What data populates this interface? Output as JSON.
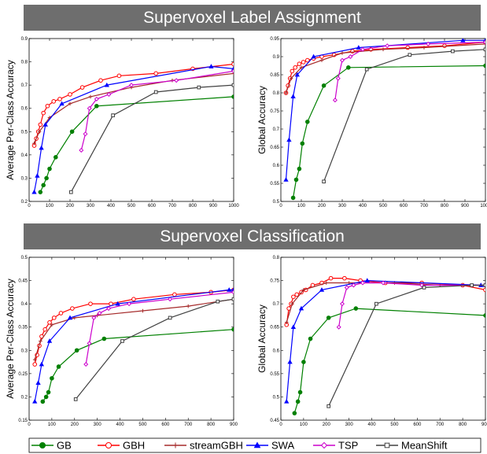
{
  "banners": {
    "top": "Supervoxel Label Assignment",
    "bottom": "Supervoxel Classification"
  },
  "legend": {
    "placement": "bottom",
    "items": [
      {
        "name": "GB",
        "color": "#008000",
        "marker": "circle-filled"
      },
      {
        "name": "GBH",
        "color": "#ff0000",
        "marker": "circle-open"
      },
      {
        "name": "streamGBH",
        "color": "#a52a2a",
        "marker": "plus"
      },
      {
        "name": "SWA",
        "color": "#0000ff",
        "marker": "triangle-filled"
      },
      {
        "name": "TSP",
        "color": "#cc00cc",
        "marker": "diamond-open"
      },
      {
        "name": "MeanShift",
        "color": "#404040",
        "marker": "square-open"
      }
    ]
  },
  "chart_data": [
    {
      "type": "line",
      "ylabel": "Average Per-Class Accuracy",
      "xlim": [
        0,
        1000
      ],
      "ylim": [
        0.2,
        0.9
      ],
      "xticks": [
        0,
        100,
        200,
        300,
        400,
        500,
        600,
        700,
        800,
        900,
        1000
      ],
      "yticks": [
        0.2,
        0.3,
        0.4,
        0.5,
        0.6,
        0.7,
        0.8,
        0.9
      ],
      "ytick_labels": [
        "0.2",
        "0.3",
        "0.4",
        "0.5",
        "0.6",
        "0.7",
        "0.8",
        "0.9"
      ],
      "grid": false,
      "series": [
        {
          "name": "GB",
          "x": [
            55,
            70,
            85,
            100,
            130,
            210,
            330,
            1000
          ],
          "y": [
            0.24,
            0.27,
            0.3,
            0.34,
            0.39,
            0.5,
            0.61,
            0.65
          ]
        },
        {
          "name": "GBH",
          "x": [
            25,
            35,
            45,
            55,
            70,
            90,
            120,
            150,
            200,
            260,
            350,
            440,
            620,
            800,
            1000
          ],
          "y": [
            0.44,
            0.47,
            0.5,
            0.53,
            0.58,
            0.61,
            0.63,
            0.64,
            0.66,
            0.69,
            0.72,
            0.74,
            0.75,
            0.77,
            0.79
          ]
        },
        {
          "name": "streamGBH",
          "x": [
            25,
            50,
            100,
            200,
            300,
            500,
            700,
            1000
          ],
          "y": [
            0.45,
            0.5,
            0.56,
            0.62,
            0.65,
            0.69,
            0.72,
            0.75
          ]
        },
        {
          "name": "SWA",
          "x": [
            25,
            40,
            60,
            80,
            160,
            380,
            890,
            1000
          ],
          "y": [
            0.24,
            0.31,
            0.43,
            0.53,
            0.62,
            0.7,
            0.78,
            0.77
          ]
        },
        {
          "name": "TSP",
          "x": [
            255,
            275,
            295,
            330,
            390,
            500,
            720,
            1000
          ],
          "y": [
            0.42,
            0.49,
            0.6,
            0.64,
            0.66,
            0.7,
            0.72,
            0.76
          ]
        },
        {
          "name": "MeanShift",
          "x": [
            205,
            410,
            620,
            830,
            1000
          ],
          "y": [
            0.24,
            0.57,
            0.67,
            0.69,
            0.7
          ]
        }
      ]
    },
    {
      "type": "line",
      "ylabel": "Global Accuracy",
      "xlim": [
        0,
        1000
      ],
      "ylim": [
        0.5,
        0.95
      ],
      "xticks": [
        0,
        100,
        200,
        300,
        400,
        500,
        600,
        700,
        800,
        900,
        1000
      ],
      "yticks": [
        0.5,
        0.55,
        0.6,
        0.65,
        0.7,
        0.75,
        0.8,
        0.85,
        0.9,
        0.95
      ],
      "ytick_labels": [
        "0.5",
        "0.55",
        "0.6",
        "0.65",
        "0.7",
        "0.75",
        "0.8",
        "0.85",
        "0.9",
        "0.95"
      ],
      "grid": false,
      "series": [
        {
          "name": "GB",
          "x": [
            60,
            75,
            90,
            105,
            130,
            210,
            330,
            1000
          ],
          "y": [
            0.51,
            0.56,
            0.59,
            0.66,
            0.72,
            0.82,
            0.87,
            0.875
          ]
        },
        {
          "name": "GBH",
          "x": [
            25,
            35,
            45,
            55,
            70,
            90,
            110,
            130,
            160,
            200,
            260,
            350,
            440,
            620,
            800,
            1000
          ],
          "y": [
            0.8,
            0.82,
            0.84,
            0.86,
            0.87,
            0.88,
            0.885,
            0.89,
            0.895,
            0.9,
            0.905,
            0.915,
            0.92,
            0.925,
            0.93,
            0.94
          ]
        },
        {
          "name": "streamGBH",
          "x": [
            25,
            50,
            100,
            200,
            300,
            500,
            700,
            1000
          ],
          "y": [
            0.8,
            0.84,
            0.87,
            0.89,
            0.91,
            0.92,
            0.925,
            0.935
          ]
        },
        {
          "name": "SWA",
          "x": [
            25,
            40,
            60,
            80,
            160,
            380,
            890,
            1000
          ],
          "y": [
            0.56,
            0.67,
            0.79,
            0.85,
            0.9,
            0.925,
            0.945,
            0.945
          ]
        },
        {
          "name": "TSP",
          "x": [
            265,
            280,
            300,
            340,
            400,
            520,
            720,
            1000
          ],
          "y": [
            0.78,
            0.84,
            0.89,
            0.9,
            0.92,
            0.93,
            0.935,
            0.94
          ]
        },
        {
          "name": "MeanShift",
          "x": [
            210,
            420,
            630,
            840,
            1000
          ],
          "y": [
            0.555,
            0.865,
            0.905,
            0.915,
            0.92
          ]
        }
      ]
    },
    {
      "type": "line",
      "ylabel": "Average Per-Class Accuracy",
      "xlim": [
        0,
        900
      ],
      "ylim": [
        0.15,
        0.5
      ],
      "xticks": [
        0,
        100,
        200,
        300,
        400,
        500,
        600,
        700,
        800,
        900
      ],
      "yticks": [
        0.15,
        0.2,
        0.25,
        0.3,
        0.35,
        0.4,
        0.45,
        0.5
      ],
      "ytick_labels": [
        "0.15",
        "0.2",
        "0.25",
        "0.3",
        "0.35",
        "0.4",
        "0.45",
        "0.5"
      ],
      "grid": false,
      "series": [
        {
          "name": "GB",
          "x": [
            60,
            75,
            85,
            100,
            130,
            210,
            330,
            900
          ],
          "y": [
            0.19,
            0.2,
            0.21,
            0.24,
            0.265,
            0.3,
            0.325,
            0.345
          ]
        },
        {
          "name": "GBH",
          "x": [
            25,
            35,
            45,
            55,
            70,
            90,
            110,
            140,
            190,
            270,
            360,
            460,
            640,
            800,
            900
          ],
          "y": [
            0.27,
            0.29,
            0.31,
            0.33,
            0.345,
            0.36,
            0.37,
            0.38,
            0.39,
            0.4,
            0.4,
            0.41,
            0.42,
            0.425,
            0.43
          ]
        },
        {
          "name": "streamGBH",
          "x": [
            25,
            50,
            100,
            200,
            300,
            500,
            700,
            900
          ],
          "y": [
            0.28,
            0.32,
            0.355,
            0.37,
            0.375,
            0.385,
            0.395,
            0.41
          ]
        },
        {
          "name": "SWA",
          "x": [
            25,
            40,
            55,
            90,
            180,
            390,
            880,
            900
          ],
          "y": [
            0.19,
            0.23,
            0.27,
            0.32,
            0.37,
            0.4,
            0.43,
            0.43
          ]
        },
        {
          "name": "TSP",
          "x": [
            250,
            265,
            285,
            310,
            350,
            440,
            620,
            900
          ],
          "y": [
            0.27,
            0.315,
            0.37,
            0.38,
            0.39,
            0.4,
            0.41,
            0.425
          ]
        },
        {
          "name": "MeanShift",
          "x": [
            205,
            410,
            620,
            830,
            900
          ],
          "y": [
            0.195,
            0.32,
            0.37,
            0.405,
            0.41
          ]
        }
      ]
    },
    {
      "type": "line",
      "ylabel": "Global Accuracy",
      "xlim": [
        0,
        900
      ],
      "ylim": [
        0.45,
        0.8
      ],
      "xticks": [
        0,
        100,
        200,
        300,
        400,
        500,
        600,
        700,
        800,
        900
      ],
      "yticks": [
        0.45,
        0.5,
        0.55,
        0.6,
        0.65,
        0.7,
        0.75,
        0.8
      ],
      "ytick_labels": [
        "0.45",
        "0.5",
        "0.55",
        "0.6",
        "0.65",
        "0.7",
        "0.75",
        "0.8"
      ],
      "grid": false,
      "series": [
        {
          "name": "GB",
          "x": [
            60,
            75,
            85,
            100,
            130,
            210,
            330,
            900
          ],
          "y": [
            0.465,
            0.49,
            0.51,
            0.575,
            0.625,
            0.67,
            0.69,
            0.675
          ]
        },
        {
          "name": "GBH",
          "x": [
            25,
            35,
            45,
            55,
            70,
            90,
            110,
            140,
            180,
            220,
            280,
            350,
            460,
            620,
            800,
            900
          ],
          "y": [
            0.655,
            0.69,
            0.7,
            0.715,
            0.72,
            0.725,
            0.73,
            0.74,
            0.745,
            0.755,
            0.755,
            0.75,
            0.745,
            0.745,
            0.74,
            0.73
          ]
        },
        {
          "name": "streamGBH",
          "x": [
            25,
            50,
            100,
            200,
            300,
            500,
            700,
            900
          ],
          "y": [
            0.66,
            0.7,
            0.73,
            0.745,
            0.745,
            0.745,
            0.74,
            0.74
          ]
        },
        {
          "name": "SWA",
          "x": [
            25,
            40,
            55,
            90,
            180,
            380,
            880,
            900
          ],
          "y": [
            0.49,
            0.575,
            0.65,
            0.69,
            0.73,
            0.75,
            0.74,
            0.74
          ]
        },
        {
          "name": "TSP",
          "x": [
            255,
            270,
            290,
            320,
            360,
            450,
            620,
            900
          ],
          "y": [
            0.65,
            0.7,
            0.735,
            0.74,
            0.745,
            0.745,
            0.74,
            0.74
          ]
        },
        {
          "name": "MeanShift",
          "x": [
            210,
            420,
            630,
            840,
            900
          ],
          "y": [
            0.48,
            0.7,
            0.735,
            0.74,
            0.74
          ]
        }
      ]
    }
  ]
}
